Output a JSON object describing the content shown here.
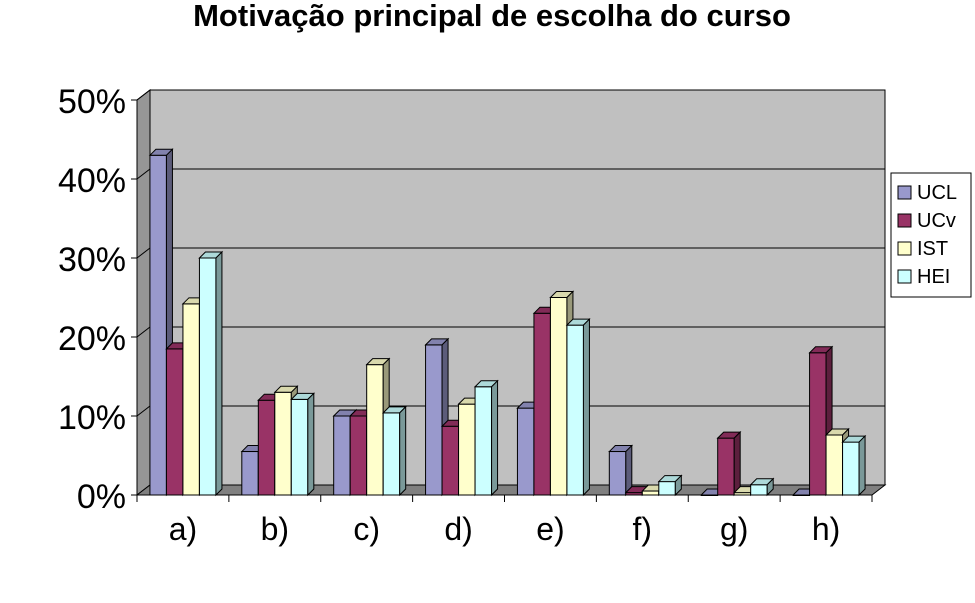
{
  "chart_data": {
    "type": "bar",
    "title": "Motivação principal de escolha do curso",
    "xlabel": "",
    "ylabel": "",
    "categories": [
      "a)",
      "b)",
      "c)",
      "d)",
      "e)",
      "f)",
      "g)",
      "h)"
    ],
    "series": [
      {
        "name": "UCL",
        "values": [
          43,
          5.5,
          10,
          19,
          11,
          5.5,
          0,
          0
        ]
      },
      {
        "name": "UCv",
        "values": [
          18.5,
          12,
          10,
          8.7,
          23,
          0.3,
          7.2,
          18
        ]
      },
      {
        "name": "IST",
        "values": [
          24.2,
          13,
          16.5,
          11.5,
          25,
          0.5,
          0.3,
          7.6
        ]
      },
      {
        "name": "HEI",
        "values": [
          30,
          12.1,
          10.4,
          13.7,
          21.5,
          1.7,
          1.3,
          6.7
        ]
      }
    ],
    "ylim": [
      0,
      50
    ],
    "yticks": [
      "0%",
      "10%",
      "20%",
      "30%",
      "40%",
      "50%"
    ],
    "grid": true,
    "legend_position": "right",
    "colors": {
      "UCL": "#9999cc",
      "UCv": "#993366",
      "IST": "#ffffcc",
      "HEI": "#ccffff",
      "wall": "#c0c0c0",
      "floor": "#808080"
    }
  }
}
